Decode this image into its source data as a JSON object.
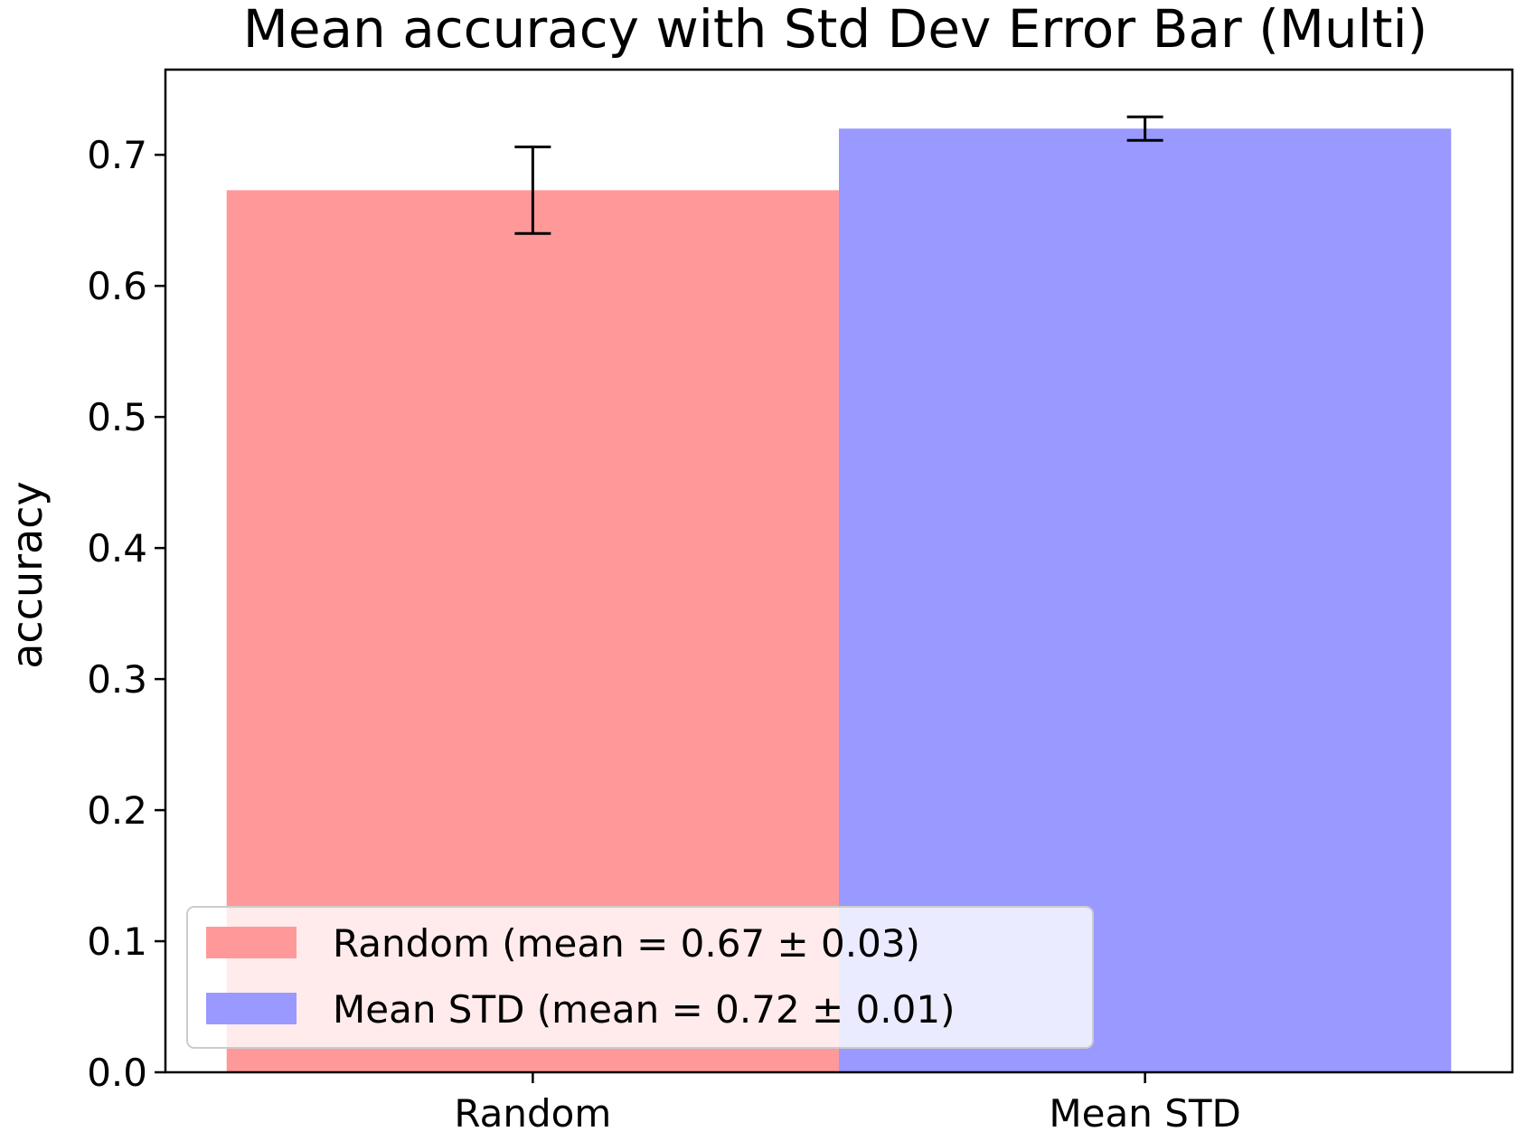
{
  "chart_data": {
    "type": "bar",
    "title": "Mean accuracy with Std Dev Error Bar (Multi)",
    "xlabel": "",
    "ylabel": "accuracy",
    "ylim": [
      0,
      0.765
    ],
    "yticks": [
      "0.0",
      "0.1",
      "0.2",
      "0.3",
      "0.4",
      "0.5",
      "0.6",
      "0.7"
    ],
    "categories": [
      "Random",
      "Mean STD"
    ],
    "values": [
      0.673,
      0.72
    ],
    "errors": [
      0.033,
      0.009
    ],
    "colors": [
      "#ff9999",
      "#9999ff"
    ],
    "grid": false,
    "legend": {
      "placement": "lower-left",
      "entries": [
        {
          "label": "Random (mean = 0.67 ± 0.03)",
          "color": "#ff9999"
        },
        {
          "label": "Mean STD (mean = 0.72 ± 0.01)",
          "color": "#9999ff"
        }
      ]
    }
  }
}
